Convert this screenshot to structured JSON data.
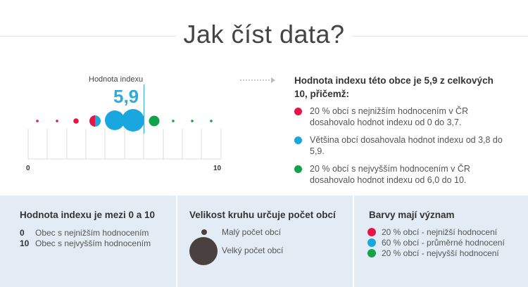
{
  "title": "Jak číst data?",
  "index_label": "Hodnota indexu",
  "index_value": "5,9",
  "axis": {
    "min_label": "0",
    "max_label": "10"
  },
  "explanation": {
    "title": "Hodnota indexu této obce je 5,9 z celkových 10, přičemž:",
    "items": [
      {
        "text": "20 % obcí s nejnižším hodnocením v ČR dosahovalo hodnot indexu od 0 do 3,7.",
        "color": "#e5154a"
      },
      {
        "text": "Většina obcí dosahovala hodnot indexu od 3,8 do 5,9.",
        "color": "#1aa7e0"
      },
      {
        "text": "20 % obcí s nejvyšším hodnocením v ČR dosahovalo hodnot indexu od 6,0 do 10.",
        "color": "#11a24b"
      }
    ]
  },
  "bottom": {
    "col1": {
      "title": "Hodnota indexu je mezi 0 a 10",
      "rows": [
        {
          "num": "0",
          "text": "Obec s nejnižším hodnocením"
        },
        {
          "num": "10",
          "text": "Obec s nejvyšším hodnocením"
        }
      ]
    },
    "col2": {
      "title": "Velikost kruhu určuje počet obcí",
      "small": "Malý počet obcí",
      "large": "Velký počet obcí"
    },
    "col3": {
      "title": "Barvy mají význam",
      "items": [
        {
          "text": "20 % obcí - nejnižší hodnocení",
          "color": "#e5154a"
        },
        {
          "text": "60 % obcí - průměrné hodnocení",
          "color": "#1aa7e0"
        },
        {
          "text": "20 % obcí - nejvyšší hodnocení",
          "color": "#11a24b"
        }
      ]
    }
  }
}
